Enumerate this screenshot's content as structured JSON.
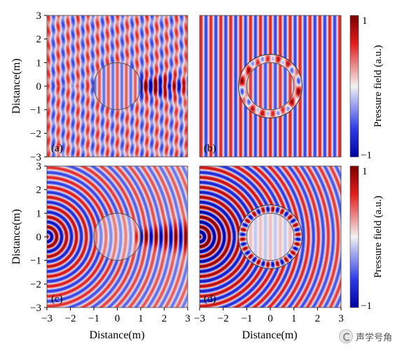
{
  "chart_data": {
    "type": "heatmap",
    "field": "pressure",
    "xlabel": "Distance(m)",
    "ylabel": "Distance(m)",
    "xlim": [
      -3,
      3
    ],
    "ylim": [
      -3,
      3
    ],
    "xticks": [
      "−3",
      "−2",
      "−1",
      "0",
      "1",
      "2",
      "3"
    ],
    "yticks": [
      "3",
      "2",
      "1",
      "0",
      "−1",
      "−2",
      "−3"
    ],
    "colorbar": {
      "label": "Pressure field (a.u.)",
      "max_label": "1",
      "min_label": "−1",
      "range": [
        -1,
        1
      ],
      "colors": {
        "max": "#7a0000",
        "mid": "#f2f2f2",
        "min": "#0000a0"
      }
    },
    "scatterer_radius": 1.0,
    "shell_outer_radius": 1.35,
    "panels": [
      {
        "label": "(a)",
        "source": "plane",
        "shell": false
      },
      {
        "label": "(b)",
        "source": "plane",
        "shell": true
      },
      {
        "label": "(c)",
        "source": "point",
        "shell": false
      },
      {
        "label": "(d)",
        "source": "point",
        "shell": true
      }
    ]
  },
  "watermark": {
    "text": "声学号角"
  }
}
